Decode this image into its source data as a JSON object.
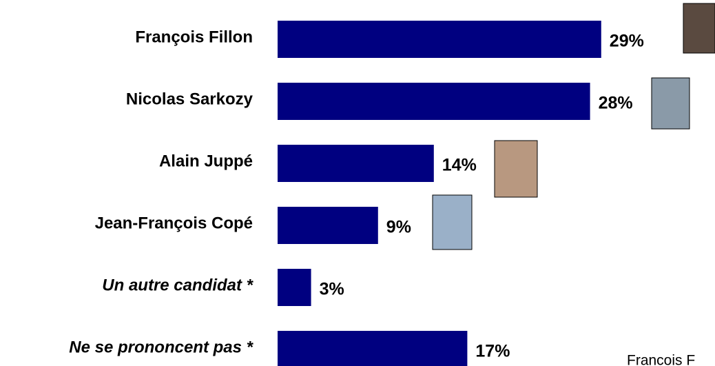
{
  "chart_data": {
    "type": "bar",
    "orientation": "horizontal",
    "categories": [
      "François Fillon",
      "Nicolas Sarkozy",
      "Alain Juppé",
      "Jean-François Copé",
      "Un autre candidat *",
      "Ne se prononcent pas *"
    ],
    "values": [
      29,
      28,
      14,
      9,
      3,
      17
    ],
    "value_labels": [
      "29%",
      "28%",
      "14%",
      "9%",
      "3%",
      "17%"
    ],
    "color": "#000080",
    "annotation": "Francois F"
  }
}
